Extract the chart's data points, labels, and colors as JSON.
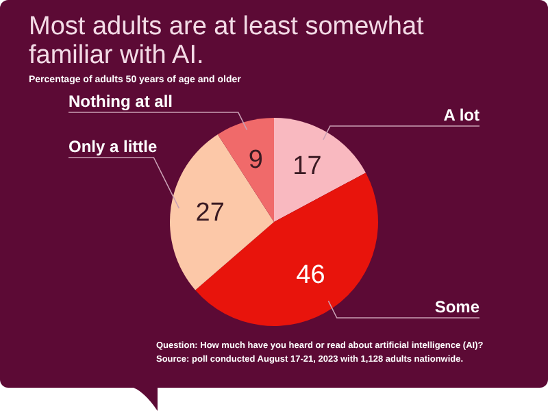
{
  "chart_data": {
    "type": "pie",
    "title": "Most adults are at least somewhat familiar with AI.",
    "subtitle": "Percentage of adults 50 years of age and older",
    "categories": [
      "A lot",
      "Some",
      "Only a little",
      "Nothing at all"
    ],
    "values": [
      17,
      46,
      27,
      9
    ],
    "colors": [
      "#f9b9c0",
      "#e8140c",
      "#fcc8a8",
      "#f06a6a"
    ],
    "data_labels": true,
    "annotations": [
      "Question: How much have you heard or read about artificial intelligence (AI)?",
      "Source: poll conducted August 17-21, 2023 with 1,128 adults nationwide."
    ]
  }
}
